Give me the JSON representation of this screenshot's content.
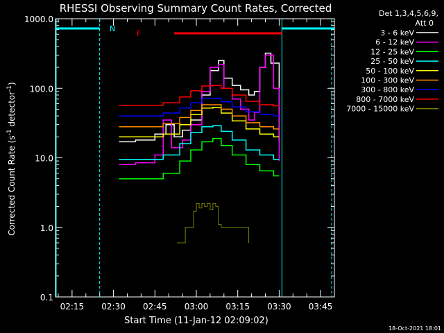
{
  "chart_data": {
    "type": "line",
    "title": "RHESSI Observing Summary Count Rates, Corrected",
    "xlabel": "Start Time (11-Jan-12 02:09:02)",
    "ylabel_main": "Corrected Count Rate (s",
    "ylabel_exp1": "-1",
    "ylabel_mid": " detector",
    "ylabel_exp2": "-1",
    "ylabel_end": ")",
    "yscale": "log",
    "ylim": [
      0.1,
      1000
    ],
    "xlim_minutes": [
      129,
      230
    ],
    "x_ticks": [
      "02:15",
      "02:30",
      "02:45",
      "03:00",
      "03:15",
      "03:30",
      "03:45"
    ],
    "y_ticks": [
      "0.1",
      "1.0",
      "10.0",
      "100.0",
      "1000.0"
    ],
    "timestamp": "18-Oct-2021 18:01",
    "legend_header": [
      "Det 1,3,4,5,6,9,",
      "Att 0"
    ],
    "annotations": {
      "N": "N",
      "F": "F"
    },
    "series": [
      {
        "name": "3 - 6 keV",
        "color": "#ffffff",
        "x": [
          152,
          158,
          165,
          169,
          172,
          175,
          178,
          182,
          185,
          188,
          190,
          193,
          196,
          199,
          201,
          203,
          205,
          207,
          210
        ],
        "y": [
          17,
          18,
          22,
          30,
          20,
          25,
          35,
          80,
          180,
          250,
          140,
          110,
          95,
          80,
          90,
          200,
          320,
          230,
          17
        ]
      },
      {
        "name": "6 - 12 keV",
        "color": "#ff00ff",
        "x": [
          152,
          158,
          165,
          168,
          171,
          175,
          178,
          182,
          185,
          188,
          190,
          193,
          196,
          199,
          201,
          203,
          205,
          208,
          210
        ],
        "y": [
          8,
          8.5,
          11,
          35,
          14,
          18,
          30,
          90,
          200,
          220,
          100,
          70,
          50,
          35,
          45,
          200,
          300,
          100,
          9
        ]
      },
      {
        "name": "12 - 25 keV",
        "color": "#00ff00",
        "x": [
          152,
          160,
          168,
          174,
          178,
          182,
          186,
          189,
          193,
          198,
          203,
          208,
          210
        ],
        "y": [
          5,
          5,
          6,
          9,
          13,
          17,
          19,
          15,
          11,
          8,
          6.5,
          5.5,
          5.5
        ]
      },
      {
        "name": "25 - 50 keV",
        "color": "#00ffff",
        "x": [
          152,
          160,
          168,
          174,
          178,
          182,
          186,
          189,
          193,
          198,
          203,
          208,
          210
        ],
        "y": [
          9.5,
          9.5,
          11,
          16,
          23,
          28,
          29,
          24,
          18,
          13,
          11,
          9.5,
          9.5
        ]
      },
      {
        "name": "50 - 100 keV",
        "color": "#ffff00",
        "x": [
          152,
          160,
          168,
          174,
          178,
          182,
          186,
          189,
          193,
          198,
          203,
          208,
          210
        ],
        "y": [
          20,
          20,
          22,
          30,
          42,
          52,
          53,
          44,
          34,
          26,
          22,
          20,
          20
        ]
      },
      {
        "name": "100 - 300 keV",
        "color": "#ff8c00",
        "x": [
          152,
          160,
          168,
          174,
          178,
          182,
          186,
          189,
          193,
          198,
          203,
          208,
          210
        ],
        "y": [
          28,
          28,
          31,
          38,
          48,
          58,
          58,
          50,
          40,
          32,
          28,
          26,
          26
        ]
      },
      {
        "name": "300 - 800 keV",
        "color": "#0000ff",
        "x": [
          152,
          160,
          168,
          174,
          178,
          182,
          186,
          189,
          193,
          198,
          203,
          208,
          210
        ],
        "y": [
          40,
          40,
          44,
          52,
          62,
          72,
          72,
          64,
          54,
          46,
          42,
          40,
          40
        ]
      },
      {
        "name": "800 - 7000 keV",
        "color": "#ff0000",
        "x": [
          152,
          160,
          168,
          174,
          178,
          182,
          186,
          189,
          193,
          198,
          203,
          208,
          210
        ],
        "y": [
          57,
          57,
          62,
          75,
          92,
          108,
          110,
          100,
          80,
          65,
          58,
          56,
          55
        ]
      },
      {
        "name": "7000 - 15000 keV",
        "color": "#808000",
        "x": [
          173,
          176,
          177,
          178,
          179,
          180,
          181,
          182,
          183,
          184,
          185,
          186,
          187,
          188,
          189,
          190,
          191,
          192,
          193,
          194,
          195,
          196,
          197,
          198,
          199
        ],
        "y": [
          0.6,
          1.0,
          1.0,
          1.0,
          1.7,
          2.2,
          1.9,
          2.2,
          2.0,
          2.2,
          1.8,
          2.2,
          2.0,
          1.1,
          1.0,
          1.0,
          1.0,
          1.0,
          1.0,
          1.0,
          1.0,
          1.0,
          1.0,
          1.0,
          0.6
        ]
      }
    ],
    "intervals": {
      "night_color": "#00ffff",
      "night": [
        [
          129,
          145
        ],
        [
          211,
          230
        ]
      ],
      "flare_color": "#ff0000",
      "flare": [
        [
          172,
          211
        ]
      ]
    }
  }
}
